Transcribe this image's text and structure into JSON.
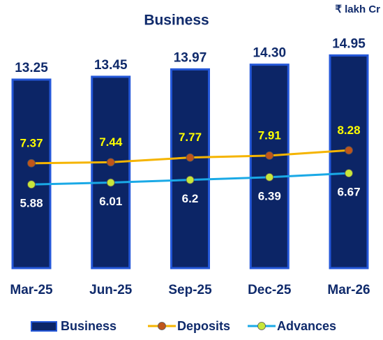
{
  "chart_data": {
    "type": "bar",
    "title": "Business",
    "unit_label": "₹ lakh Cr",
    "categories": [
      "Mar-25",
      "Jun-25",
      "Sep-25",
      "Dec-25",
      "Mar-26"
    ],
    "series": [
      {
        "name": "Business",
        "type": "bar",
        "color": "#0c2566",
        "values": [
          13.25,
          13.45,
          13.97,
          14.3,
          14.95
        ],
        "value_labels": [
          "13.25",
          "13.45",
          "13.97",
          "14.30",
          "14.95"
        ]
      },
      {
        "name": "Deposits",
        "type": "line",
        "color": "#f5b400",
        "marker_color": "#c0551a",
        "label_color": "#ffff00",
        "values": [
          7.37,
          7.44,
          7.77,
          7.91,
          8.28
        ]
      },
      {
        "name": "Advances",
        "type": "line",
        "color": "#1aa9e6",
        "marker_color": "#c8e63a",
        "label_color": "#ffffff",
        "values": [
          5.88,
          6.01,
          6.2,
          6.39,
          6.67
        ]
      }
    ],
    "ylim": [
      0,
      16
    ],
    "grid": false
  }
}
